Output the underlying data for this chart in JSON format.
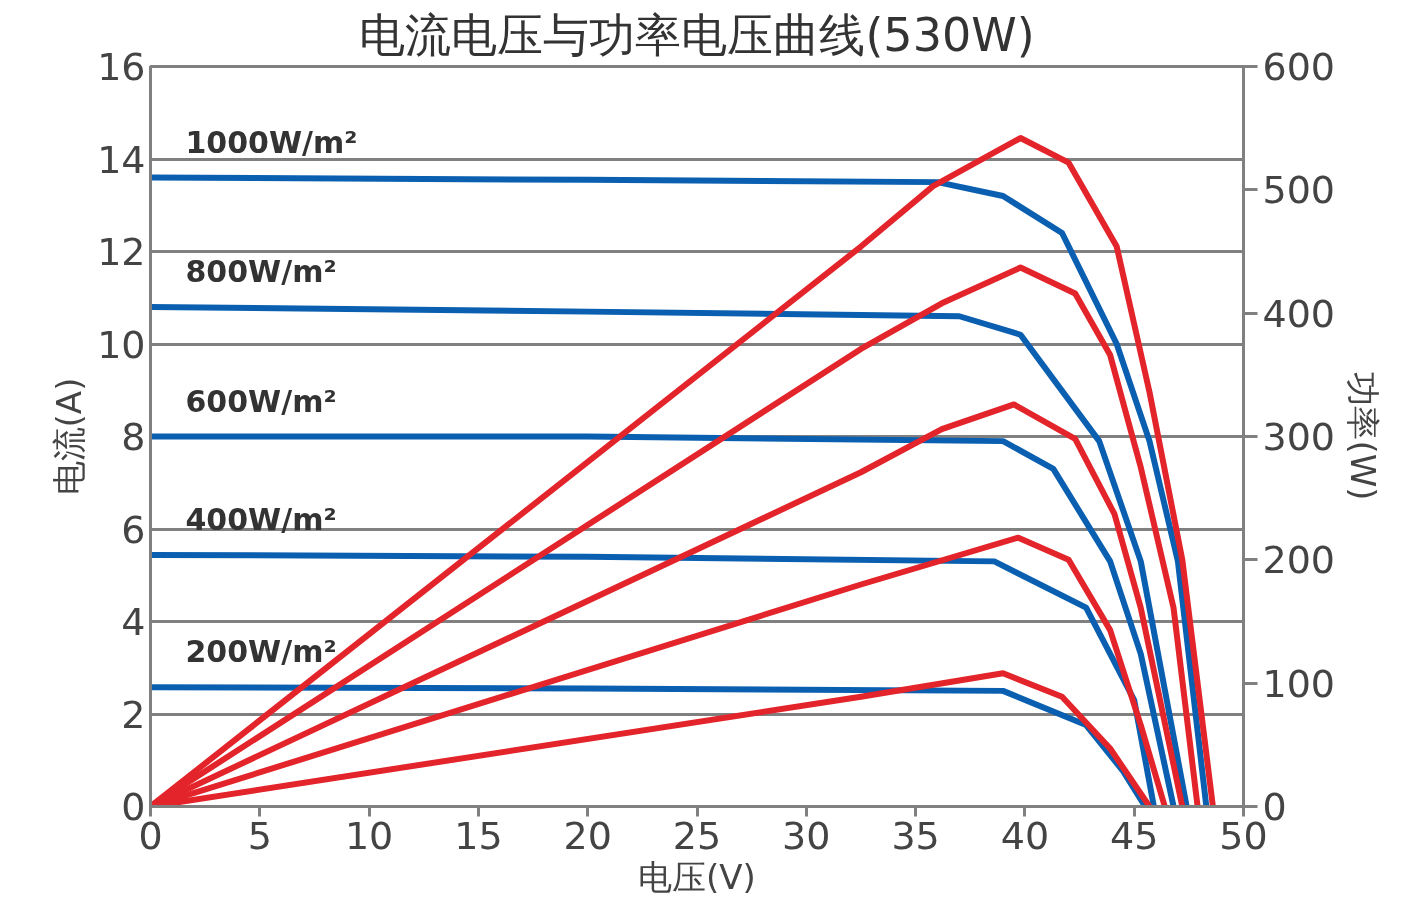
{
  "chart_data": {
    "type": "line",
    "title": "电流电压与功率电压曲线(530W)",
    "xlabel": "电压(V)",
    "ylabel": "电流(A)",
    "y2label": "功率(W)",
    "xlim": [
      0,
      50
    ],
    "xticks": [
      0,
      5,
      10,
      15,
      20,
      25,
      30,
      35,
      40,
      45,
      50
    ],
    "ylim": [
      0,
      16
    ],
    "yticks": [
      0,
      2,
      4,
      6,
      8,
      10,
      12,
      14,
      16
    ],
    "y2lim": [
      0,
      600
    ],
    "y2ticks": [
      0,
      100,
      200,
      300,
      400,
      500,
      600
    ],
    "grid": "y",
    "marker": "none",
    "line_style": "solid",
    "series": [
      {
        "color": "#0a5fb0",
        "x": [
          0,
          20,
          36,
          39,
          41.7,
          44.2,
          45.7,
          47.0,
          48.3
        ],
        "values": [
          13.6,
          13.55,
          13.5,
          13.2,
          12.4,
          10.0,
          7.9,
          5.3,
          0
        ]
      },
      {
        "color": "#0a5fb0",
        "x": [
          0,
          20,
          37,
          39.8,
          43.4,
          45.3,
          47.4
        ],
        "values": [
          10.8,
          10.7,
          10.6,
          10.2,
          7.9,
          5.3,
          0
        ]
      },
      {
        "color": "#0a5fb0",
        "x": [
          0,
          20,
          39,
          41.3,
          43.9,
          45.3,
          46.8
        ],
        "values": [
          8.0,
          8.0,
          7.9,
          7.3,
          5.3,
          3.3,
          0
        ]
      },
      {
        "color": "#0a5fb0",
        "x": [
          0,
          20,
          38.6,
          42.8,
          45.0,
          45.9
        ],
        "values": [
          5.44,
          5.4,
          5.3,
          4.3,
          2.3,
          0
        ]
      },
      {
        "color": "#0a5fb0",
        "x": [
          0,
          20,
          39,
          42.8,
          44.5,
          45.5
        ],
        "values": [
          2.58,
          2.55,
          2.5,
          1.76,
          0.76,
          0
        ]
      },
      {
        "color": "#e3242b",
        "axis": "y2",
        "x": [
          0,
          32.5,
          35.8,
          39.8,
          42.0,
          44.2,
          45.7,
          47.2,
          48.6
        ],
        "values": [
          0,
          454,
          503,
          542,
          522,
          454,
          336,
          200,
          0
        ]
      },
      {
        "color": "#e3242b",
        "axis": "y2",
        "x": [
          0,
          32.5,
          36.2,
          39.8,
          42.3,
          43.9,
          45.3,
          46.8,
          47.9
        ],
        "values": [
          0,
          371,
          408,
          437,
          416,
          366,
          275,
          161,
          0
        ]
      },
      {
        "color": "#e3242b",
        "axis": "y2",
        "x": [
          0,
          32.5,
          36.2,
          39.5,
          42.3,
          44.1,
          45.3,
          47.2
        ],
        "values": [
          0,
          271,
          306,
          326,
          298,
          237,
          161,
          0
        ]
      },
      {
        "color": "#e3242b",
        "axis": "y2",
        "x": [
          0,
          32.5,
          39.7,
          42.0,
          43.9,
          45.3,
          46.4
        ],
        "values": [
          0,
          180,
          218,
          200,
          143,
          66,
          0
        ]
      },
      {
        "color": "#e3242b",
        "axis": "y2",
        "x": [
          0,
          32.5,
          39.0,
          41.7,
          43.9,
          45.7
        ],
        "values": [
          0,
          89,
          108,
          89,
          47,
          0
        ]
      }
    ],
    "annotations": [
      "1000W/m²",
      "800W/m²",
      "600W/m²",
      "400W/m²",
      "200W/m²"
    ]
  }
}
